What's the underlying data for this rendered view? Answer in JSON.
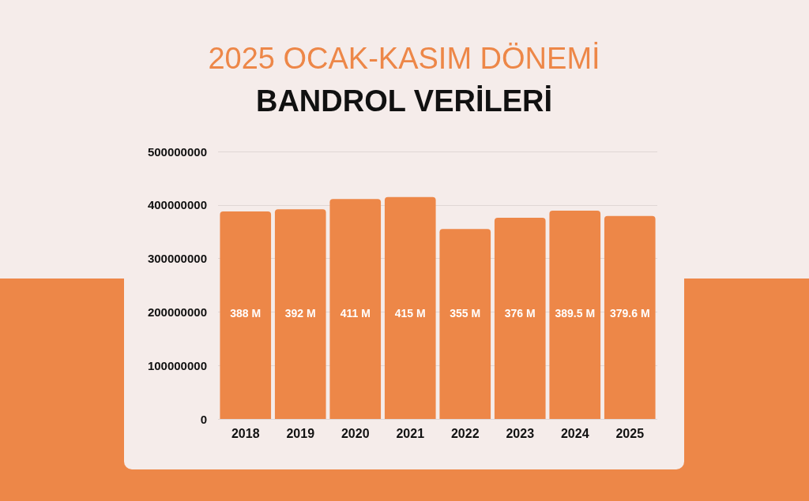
{
  "chart_data": {
    "type": "bar",
    "title": "2025 OCAK-KASIM DÖNEMİ",
    "subtitle": "BANDROL VERİLERİ",
    "categories": [
      "2018",
      "2019",
      "2020",
      "2021",
      "2022",
      "2023",
      "2024",
      "2025"
    ],
    "values": [
      388000000,
      392000000,
      411000000,
      415000000,
      355000000,
      376000000,
      389500000,
      379600000
    ],
    "value_labels": [
      "388 M",
      "392 M",
      "411 M",
      "415 M",
      "355 M",
      "376 M",
      "389.5 M",
      "379.6 M"
    ],
    "color": "#ed8748",
    "ylim": [
      0,
      500000000
    ],
    "yticks": [
      0,
      100000000,
      200000000,
      300000000,
      400000000,
      500000000
    ],
    "grid": "y"
  }
}
